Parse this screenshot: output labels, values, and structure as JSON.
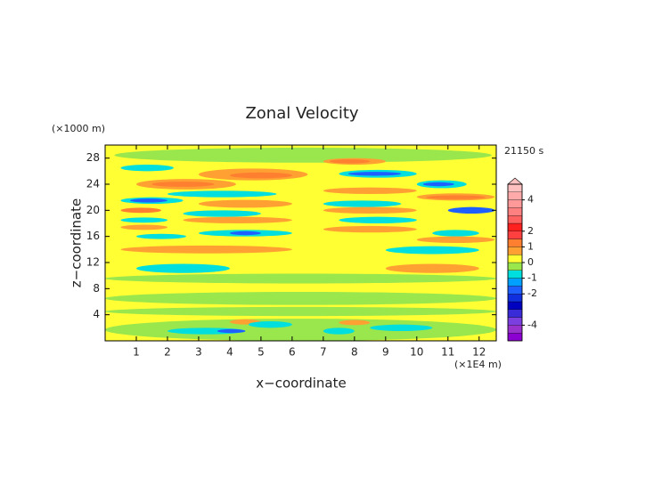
{
  "chart_data": {
    "type": "contour",
    "title": "Zonal Velocity",
    "xlabel": "x−coordinate",
    "ylabel": "z−coordinate",
    "xunit": "(×1E4 m)",
    "yunit": "(×1000 m)",
    "time": "21150 s",
    "xlim": [
      0,
      12.55
    ],
    "ylim": [
      0,
      30
    ],
    "xticks": [
      1,
      2,
      3,
      4,
      5,
      6,
      7,
      8,
      9,
      10,
      11,
      12
    ],
    "yticks": [
      4,
      8,
      12,
      16,
      20,
      24,
      28
    ],
    "levels": [
      -5,
      -4.5,
      -4,
      -3.5,
      -3,
      -2.5,
      -2,
      -1.5,
      -1,
      -0.5,
      0,
      0.5,
      1,
      1.5,
      2,
      2.5,
      3,
      3.5,
      4,
      4.5,
      5
    ],
    "colors": [
      "#8b00d0",
      "#9932cc",
      "#7b3fe0",
      "#3a2bd8",
      "#0000c0",
      "#1030e0",
      "#1e60ff",
      "#00a0ff",
      "#00dede",
      "#99e64d",
      "#ffff33",
      "#ffa033",
      "#ff7f30",
      "#ff4040",
      "#ff2020",
      "#ff6060",
      "#ff8080",
      "#ff9999",
      "#ffaaaa",
      "#ffc0c0"
    ],
    "colorbar_ticks": [
      4,
      2,
      1,
      0,
      -1,
      -2,
      -4
    ],
    "background_value": 0.2,
    "features": [
      {
        "x": [
          0.3,
          12.4
        ],
        "z": [
          27.3,
          29.6
        ],
        "value": -0.3
      },
      {
        "x": [
          0,
          12.55
        ],
        "z": [
          8.8,
          10.3
        ],
        "value": -0.3
      },
      {
        "x": [
          0,
          12.55
        ],
        "z": [
          5.5,
          7.5
        ],
        "value": -0.3
      },
      {
        "x": [
          0,
          12.55
        ],
        "z": [
          3.8,
          5.2
        ],
        "value": -0.3
      },
      {
        "x": [
          0,
          12.55
        ],
        "z": [
          0,
          3.4
        ],
        "value": -0.3
      },
      {
        "x": [
          0.5,
          2.2
        ],
        "z": [
          26,
          27
        ],
        "value": -0.8
      },
      {
        "x": [
          3,
          6.5
        ],
        "z": [
          24.6,
          26.4
        ],
        "value": 0.8
      },
      {
        "x": [
          4,
          6
        ],
        "z": [
          24.9,
          25.8
        ],
        "value": 1.2
      },
      {
        "x": [
          1,
          4.2
        ],
        "z": [
          23.2,
          24.8
        ],
        "value": 0.8
      },
      {
        "x": [
          1.5,
          3.5
        ],
        "z": [
          23.6,
          24.4
        ],
        "value": 1.2
      },
      {
        "x": [
          2,
          5.5
        ],
        "z": [
          22,
          23
        ],
        "value": -0.8
      },
      {
        "x": [
          0.5,
          2.5
        ],
        "z": [
          21,
          22
        ],
        "value": -0.8
      },
      {
        "x": [
          0.8,
          2
        ],
        "z": [
          21.2,
          21.8
        ],
        "value": -1.6
      },
      {
        "x": [
          3,
          6
        ],
        "z": [
          20.4,
          21.6
        ],
        "value": 0.8
      },
      {
        "x": [
          0.5,
          1.8
        ],
        "z": [
          19.6,
          20.4
        ],
        "value": 1.2
      },
      {
        "x": [
          2.5,
          5
        ],
        "z": [
          19,
          20
        ],
        "value": -0.8
      },
      {
        "x": [
          0.5,
          2
        ],
        "z": [
          18.1,
          18.9
        ],
        "value": -0.8
      },
      {
        "x": [
          2.5,
          6
        ],
        "z": [
          18,
          19
        ],
        "value": 0.8
      },
      {
        "x": [
          0.5,
          2
        ],
        "z": [
          17,
          17.8
        ],
        "value": 0.8
      },
      {
        "x": [
          3,
          6
        ],
        "z": [
          16,
          17
        ],
        "value": -0.8
      },
      {
        "x": [
          4,
          5
        ],
        "z": [
          16.2,
          16.8
        ],
        "value": -1.6
      },
      {
        "x": [
          1,
          2.6
        ],
        "z": [
          15.6,
          16.4
        ],
        "value": -0.8
      },
      {
        "x": [
          0.5,
          6
        ],
        "z": [
          13.4,
          14.6
        ],
        "value": 0.8
      },
      {
        "x": [
          1,
          4
        ],
        "z": [
          10.4,
          11.8
        ],
        "value": -0.8
      },
      {
        "x": [
          2,
          4.5
        ],
        "z": [
          1,
          2
        ],
        "value": -0.8
      },
      {
        "x": [
          3.6,
          4.5
        ],
        "z": [
          1.2,
          1.8
        ],
        "value": -1.6
      },
      {
        "x": [
          4,
          5
        ],
        "z": [
          2.5,
          3.3
        ],
        "value": 0.8
      },
      {
        "x": [
          4.6,
          6
        ],
        "z": [
          2,
          3
        ],
        "value": -0.8
      },
      {
        "x": [
          7,
          9
        ],
        "z": [
          27,
          28
        ],
        "value": 0.8
      },
      {
        "x": [
          7.2,
          8.5
        ],
        "z": [
          27.2,
          27.8
        ],
        "value": 1.2
      },
      {
        "x": [
          7.5,
          10
        ],
        "z": [
          25,
          26.2
        ],
        "value": -0.8
      },
      {
        "x": [
          7.8,
          9.5
        ],
        "z": [
          25.3,
          25.9
        ],
        "value": -1.6
      },
      {
        "x": [
          10,
          11.6
        ],
        "z": [
          23.4,
          24.6
        ],
        "value": -0.8
      },
      {
        "x": [
          10.2,
          11.2
        ],
        "z": [
          23.7,
          24.3
        ],
        "value": -1.6
      },
      {
        "x": [
          7,
          10
        ],
        "z": [
          22.5,
          23.5
        ],
        "value": 0.8
      },
      {
        "x": [
          10,
          12.5
        ],
        "z": [
          21.5,
          22.6
        ],
        "value": 0.8
      },
      {
        "x": [
          10.3,
          12.2
        ],
        "z": [
          21.7,
          22.3
        ],
        "value": 1.2
      },
      {
        "x": [
          7,
          9.5
        ],
        "z": [
          20.5,
          21.5
        ],
        "value": -0.8
      },
      {
        "x": [
          11,
          12.5
        ],
        "z": [
          19.5,
          20.5
        ],
        "value": -1.6
      },
      {
        "x": [
          7,
          10
        ],
        "z": [
          19.5,
          20.5
        ],
        "value": 0.8
      },
      {
        "x": [
          7.5,
          10
        ],
        "z": [
          18,
          19
        ],
        "value": -0.8
      },
      {
        "x": [
          7,
          10
        ],
        "z": [
          16.6,
          17.6
        ],
        "value": 0.8
      },
      {
        "x": [
          10.5,
          12
        ],
        "z": [
          16,
          17
        ],
        "value": -0.8
      },
      {
        "x": [
          10,
          12.5
        ],
        "z": [
          15,
          16
        ],
        "value": 0.8
      },
      {
        "x": [
          9,
          12
        ],
        "z": [
          13.3,
          14.5
        ],
        "value": -0.8
      },
      {
        "x": [
          9,
          12
        ],
        "z": [
          10.4,
          11.8
        ],
        "value": 0.8
      },
      {
        "x": [
          7,
          8
        ],
        "z": [
          1,
          2
        ],
        "value": -0.8
      },
      {
        "x": [
          7.5,
          8.5
        ],
        "z": [
          2.4,
          3.2
        ],
        "value": 0.8
      },
      {
        "x": [
          8.5,
          10.5
        ],
        "z": [
          1.5,
          2.5
        ],
        "value": -0.8
      }
    ]
  }
}
